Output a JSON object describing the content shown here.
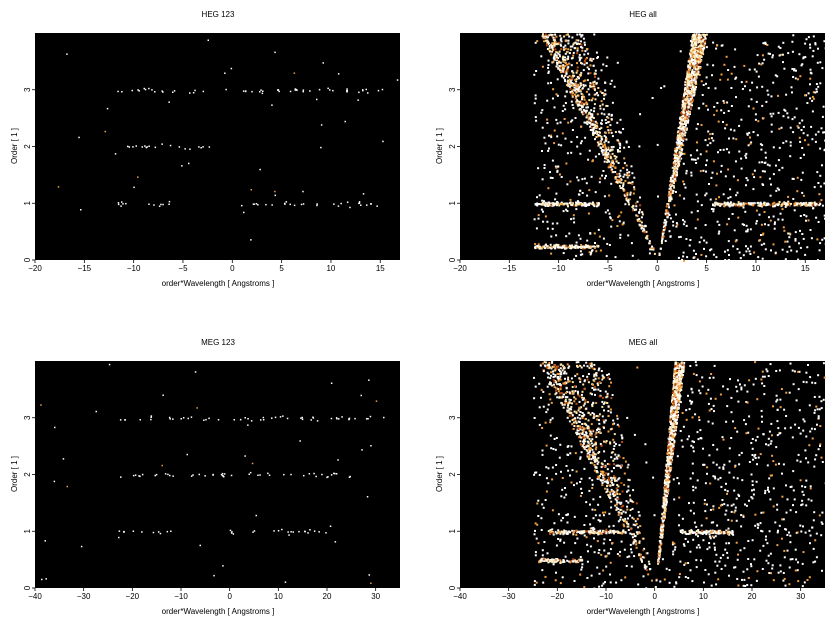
{
  "chart_data": [
    {
      "type": "heatmap",
      "title": "HEG 123",
      "xlabel": "order*Wavelength [ Angstroms ]",
      "ylabel": "Order [ 1 ]",
      "xlim": [
        -20,
        17
      ],
      "ylim": [
        0,
        4
      ],
      "xticks": [
        -20,
        -15,
        -10,
        -5,
        0,
        5,
        10,
        15
      ],
      "yticks": [
        0,
        1,
        2,
        3
      ],
      "background": "#000000",
      "colors": [
        "#ffffff",
        "#ffe9b0",
        "#f0a040",
        "#b84a10"
      ],
      "bands": [
        {
          "order": 1,
          "x_ranges": [
            [
              -12,
              -5
            ],
            [
              0.5,
              15.5
            ]
          ],
          "intensity": "low"
        },
        {
          "order": 2,
          "x_ranges": [
            [
              -12,
              -2
            ]
          ],
          "intensity": "low"
        },
        {
          "order": 3,
          "x_ranges": [
            [
              -12,
              16
            ]
          ],
          "intensity": "low"
        }
      ],
      "cones": [],
      "noise": "sparse"
    },
    {
      "type": "heatmap",
      "title": "HEG all",
      "xlabel": "order*Wavelength [ Angstroms ]",
      "ylabel": "Order [ 1 ]",
      "xlim": [
        -20,
        17
      ],
      "ylim": [
        0,
        4
      ],
      "xticks": [
        -20,
        -15,
        -10,
        -5,
        0,
        5,
        10,
        15
      ],
      "yticks": [
        0,
        1,
        2,
        3
      ],
      "background": "#000000",
      "colors": [
        "#ffffff",
        "#ffe9b0",
        "#f0a040",
        "#b84a10"
      ],
      "bands": [
        {
          "order": 1,
          "x_ranges": [
            [
              -12.5,
              -6
            ],
            [
              5.5,
              16.5
            ]
          ],
          "intensity": "high"
        },
        {
          "order": 0.25,
          "x_ranges": [
            [
              -12.5,
              -6
            ]
          ],
          "intensity": "high"
        }
      ],
      "cones": [
        {
          "x_at_top": [
            -12,
            -7.5
          ],
          "side": "left"
        },
        {
          "x_at_top": [
            3.5,
            5
          ],
          "side": "right"
        }
      ],
      "noise": "dense"
    },
    {
      "type": "heatmap",
      "title": "MEG 123",
      "xlabel": "order*Wavelength [ Angstroms ]",
      "ylabel": "Order [ 1 ]",
      "xlim": [
        -40,
        35
      ],
      "ylim": [
        0,
        4
      ],
      "xticks": [
        -40,
        -30,
        -20,
        -10,
        0,
        10,
        20,
        30
      ],
      "yticks": [
        0,
        1,
        2,
        3
      ],
      "background": "#000000",
      "colors": [
        "#ffffff",
        "#ffe9b0",
        "#f0a040",
        "#b84a10"
      ],
      "bands": [
        {
          "order": 1,
          "x_ranges": [
            [
              -23,
              -12
            ],
            [
              0,
              21
            ]
          ],
          "intensity": "low"
        },
        {
          "order": 2,
          "x_ranges": [
            [
              -23,
              25
            ]
          ],
          "intensity": "low"
        },
        {
          "order": 3,
          "x_ranges": [
            [
              -23,
              32
            ]
          ],
          "intensity": "low"
        }
      ],
      "cones": [],
      "noise": "sparse"
    },
    {
      "type": "heatmap",
      "title": "MEG all",
      "xlabel": "order*Wavelength [ Angstroms ]",
      "ylabel": "Order [ 1 ]",
      "xlim": [
        -40,
        35
      ],
      "ylim": [
        0,
        4
      ],
      "xticks": [
        -40,
        -30,
        -20,
        -10,
        0,
        10,
        20,
        30
      ],
      "yticks": [
        0,
        1,
        2,
        3
      ],
      "background": "#000000",
      "colors": [
        "#ffffff",
        "#ffe9b0",
        "#f0a040",
        "#b84a10"
      ],
      "bands": [
        {
          "order": 1,
          "x_ranges": [
            [
              -22,
              -6
            ],
            [
              5,
              16
            ]
          ],
          "intensity": "high"
        },
        {
          "order": 0.5,
          "x_ranges": [
            [
              -24,
              -15
            ]
          ],
          "intensity": "high"
        }
      ],
      "cones": [
        {
          "x_at_top": [
            -24,
            -10
          ],
          "side": "left"
        },
        {
          "x_at_top": [
            4,
            6
          ],
          "side": "right"
        }
      ],
      "noise": "dense"
    }
  ]
}
